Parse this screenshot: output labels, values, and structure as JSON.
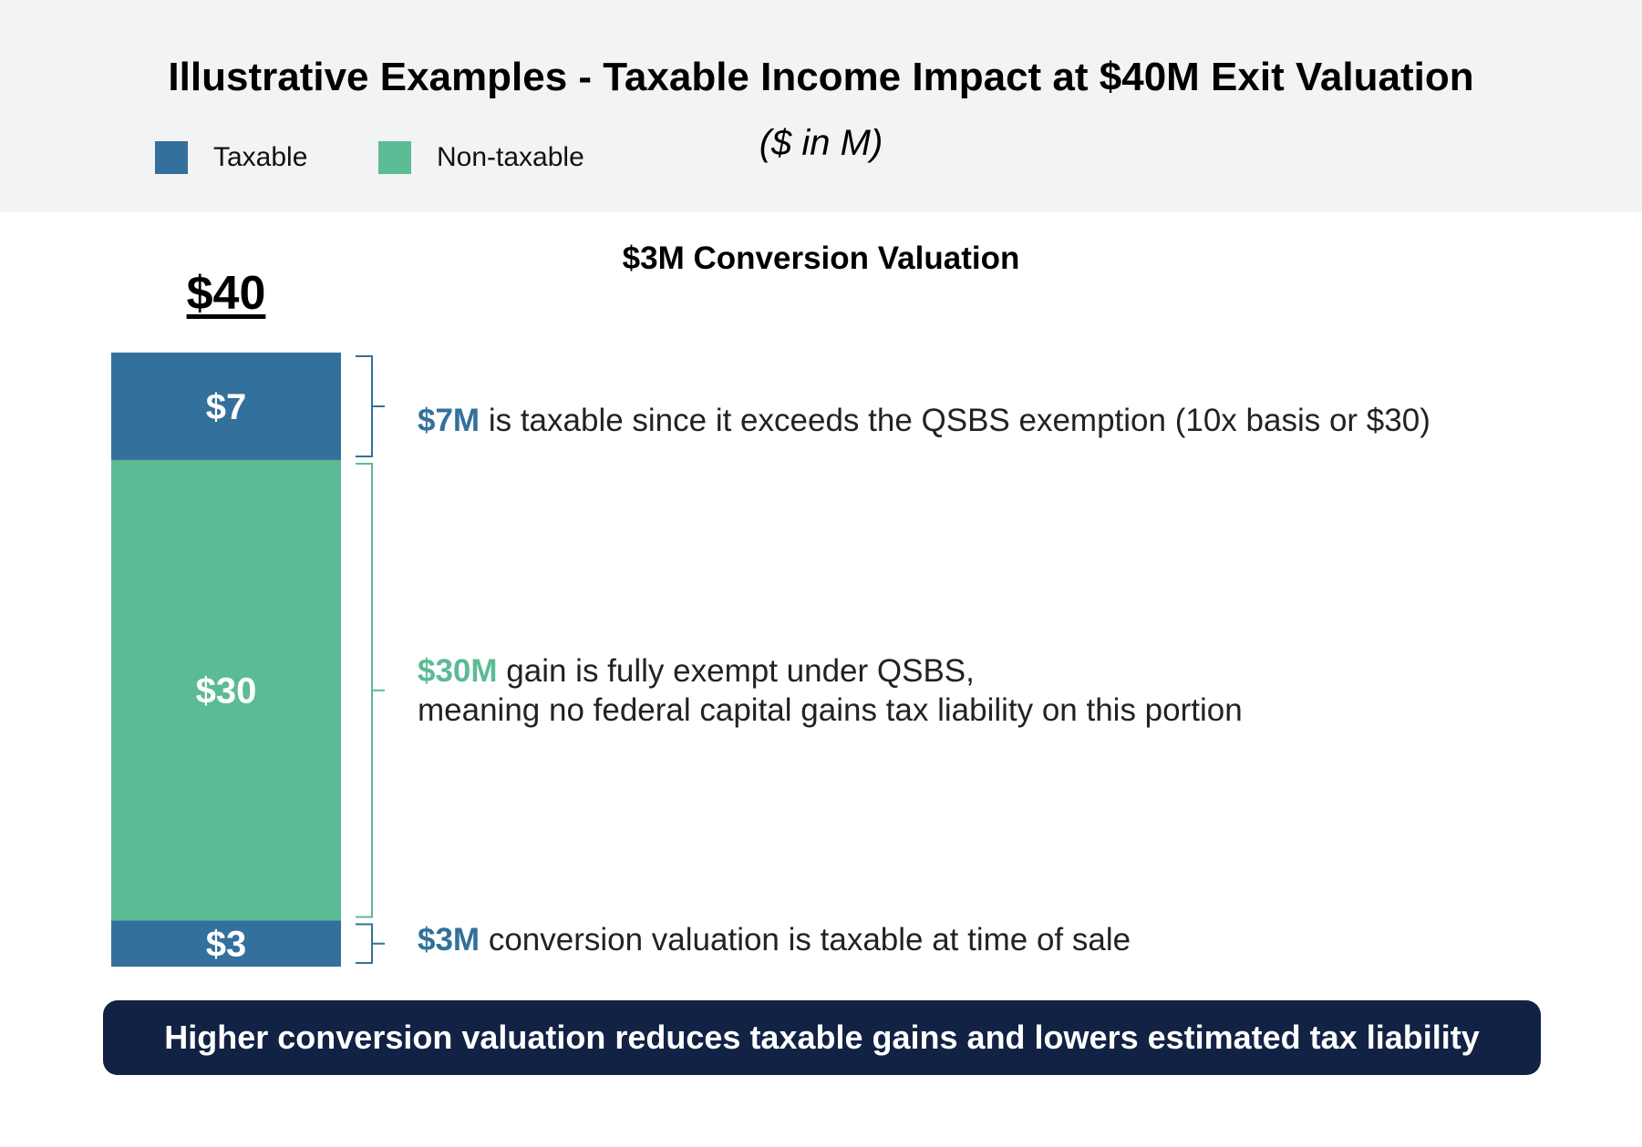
{
  "header": {
    "title": "Illustrative Examples - Taxable Income Impact at $40M Exit Valuation",
    "subtitle": "($ in M)",
    "legend": [
      {
        "label": "Taxable",
        "color": "#33709c"
      },
      {
        "label": "Non-taxable",
        "color": "#5bbb95"
      }
    ]
  },
  "section_title": "$3M Conversion Valuation",
  "total_label": "$40",
  "notes": [
    {
      "highlight": "$7M",
      "color": "#33709c",
      "line1": " is taxable since it exceeds the QSBS exemption (10x basis or $30)",
      "line2": ""
    },
    {
      "highlight": "$30M",
      "color": "#5bbb95",
      "line1": " gain is fully exempt under QSBS,",
      "line2": "meaning no federal capital gains tax liability on this portion"
    },
    {
      "highlight": "$3M",
      "color": "#33709c",
      "line1": " conversion valuation is taxable at time of sale",
      "line2": ""
    }
  ],
  "banner": "Higher conversion valuation reduces taxable gains and lowers estimated tax liability",
  "chart_data": {
    "type": "bar",
    "stacked": true,
    "total": 40,
    "title": "$3M Conversion Valuation",
    "segments": [
      {
        "label": "$7",
        "value": 7,
        "category": "Taxable",
        "color": "#33709c"
      },
      {
        "label": "$30",
        "value": 30,
        "category": "Non-taxable",
        "color": "#5bbb95"
      },
      {
        "label": "$3",
        "value": 3,
        "category": "Taxable",
        "color": "#33709c"
      }
    ]
  }
}
